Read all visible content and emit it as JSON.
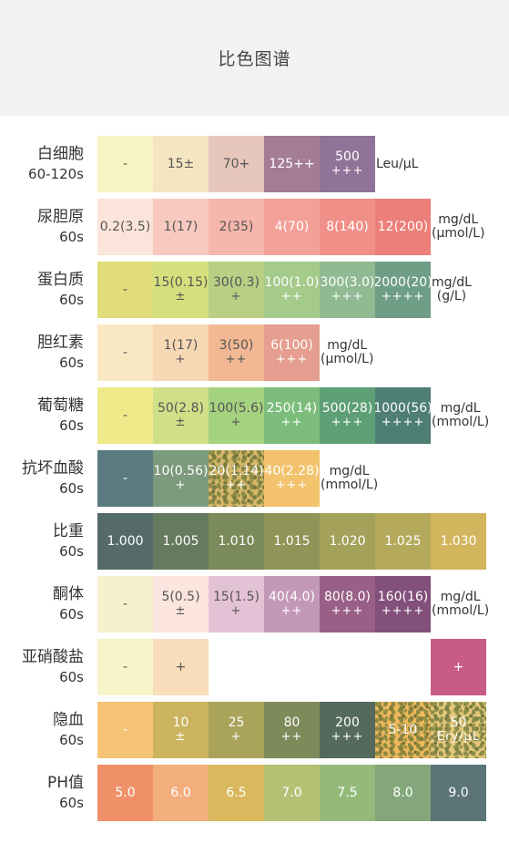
{
  "header": {
    "title": "比色图谱"
  },
  "rows": [
    {
      "name": "白细胞",
      "time": "60-120s",
      "cells": [
        {
          "t1": "-",
          "t2": "",
          "bg": "#f6f3c4",
          "dark": false
        },
        {
          "t1": "15±",
          "t2": "",
          "bg": "#f4e6c0",
          "dark": false
        },
        {
          "t1": "70+",
          "t2": "",
          "bg": "#e7c6bb",
          "dark": false
        },
        {
          "t1": "125++",
          "t2": "",
          "bg": "#a47c96",
          "dark": true
        },
        {
          "t1": "500",
          "t2": "+++",
          "bg": "#907398",
          "dark": true
        }
      ],
      "unit": [
        "Leu/μL"
      ]
    },
    {
      "name": "尿胆原",
      "time": "60s",
      "cells": [
        {
          "t1": "0.2(3.5)",
          "t2": "",
          "bg": "#fbe4da",
          "dark": false
        },
        {
          "t1": "1(17)",
          "t2": "",
          "bg": "#f8c9bf",
          "dark": false
        },
        {
          "t1": "2(35)",
          "t2": "",
          "bg": "#f5b6ab",
          "dark": false
        },
        {
          "t1": "4(70)",
          "t2": "",
          "bg": "#f3a198",
          "dark": true
        },
        {
          "t1": "8(140)",
          "t2": "",
          "bg": "#f08f88",
          "dark": true
        },
        {
          "t1": "12(200)",
          "t2": "",
          "bg": "#ed7f7a",
          "dark": true
        }
      ],
      "unit": [
        "mg/dL",
        "(μmol/L)"
      ]
    },
    {
      "name": "蛋白质",
      "time": "60s",
      "cells": [
        {
          "t1": "-",
          "t2": "",
          "bg": "#e0dc7a",
          "dark": false
        },
        {
          "t1": "15(0.15)",
          "t2": "±",
          "bg": "#d5e07c",
          "dark": false
        },
        {
          "t1": "30(0.3)",
          "t2": "+",
          "bg": "#b8cf84",
          "dark": false
        },
        {
          "t1": "100(1.0)",
          "t2": "++",
          "bg": "#a5cb8a",
          "dark": true
        },
        {
          "t1": "300(3.0)",
          "t2": "+++",
          "bg": "#8fba92",
          "dark": true
        },
        {
          "t1": "2000(20)",
          "t2": "++++",
          "bg": "#6f9e86",
          "dark": true
        }
      ],
      "unit": [
        "mg/dL",
        "(g/L)"
      ]
    },
    {
      "name": "胆红素",
      "time": "60s",
      "cells": [
        {
          "t1": "-",
          "t2": "",
          "bg": "#f9e8c4",
          "dark": false
        },
        {
          "t1": "1(17)",
          "t2": "+",
          "bg": "#f7d8b5",
          "dark": false
        },
        {
          "t1": "3(50)",
          "t2": "++",
          "bg": "#f2b894",
          "dark": false
        },
        {
          "t1": "6(100)",
          "t2": "+++",
          "bg": "#e59e8f",
          "dark": true
        }
      ],
      "unit": [
        "mg/dL",
        "(μmol/L)"
      ]
    },
    {
      "name": "葡萄糖",
      "time": "60s",
      "cells": [
        {
          "t1": "-",
          "t2": "",
          "bg": "#efe98a",
          "dark": false
        },
        {
          "t1": "50(2.8)",
          "t2": "±",
          "bg": "#cfe089",
          "dark": false
        },
        {
          "t1": "100(5.6)",
          "t2": "+",
          "bg": "#a5d27f",
          "dark": false
        },
        {
          "t1": "250(14)",
          "t2": "++",
          "bg": "#7cbd7c",
          "dark": true
        },
        {
          "t1": "500(28)",
          "t2": "+++",
          "bg": "#5e9f76",
          "dark": true
        },
        {
          "t1": "1000(56)",
          "t2": "++++",
          "bg": "#4e7e74",
          "dark": true
        }
      ],
      "unit": [
        "mg/dL",
        "(mmol/L)"
      ]
    },
    {
      "name": "抗坏血酸",
      "time": "60s",
      "cells": [
        {
          "t1": "-",
          "t2": "",
          "bg": "#587a80",
          "dark": true
        },
        {
          "t1": "10(0.56)",
          "t2": "+",
          "bg": "#7c9a7c",
          "dark": true
        },
        {
          "t1": "20(1.14)",
          "t2": "++",
          "bg": "#d9b86a",
          "dark": true,
          "speckle": true
        },
        {
          "t1": "40(2.28)",
          "t2": "+++",
          "bg": "#f2c36c",
          "dark": true
        }
      ],
      "unit": [
        "mg/dL",
        "(mmol/L)"
      ]
    },
    {
      "name": "比重",
      "time": "60s",
      "cells": [
        {
          "t1": "1.000",
          "t2": "",
          "bg": "#556b68",
          "dark": true
        },
        {
          "t1": "1.005",
          "t2": "",
          "bg": "#657a5f",
          "dark": true
        },
        {
          "t1": "1.010",
          "t2": "",
          "bg": "#7a8a5a",
          "dark": true
        },
        {
          "t1": "1.015",
          "t2": "",
          "bg": "#8f9558",
          "dark": true
        },
        {
          "t1": "1.020",
          "t2": "",
          "bg": "#a3a15a",
          "dark": true
        },
        {
          "t1": "1.025",
          "t2": "",
          "bg": "#b5a95c",
          "dark": true
        },
        {
          "t1": "1.030",
          "t2": "",
          "bg": "#d3b55e",
          "dark": true
        }
      ],
      "unit": []
    },
    {
      "name": "酮体",
      "time": "60s",
      "cells": [
        {
          "t1": "-",
          "t2": "",
          "bg": "#f7f0cc",
          "dark": false
        },
        {
          "t1": "5(0.5)",
          "t2": "±",
          "bg": "#fbe5de",
          "dark": false
        },
        {
          "t1": "15(1.5)",
          "t2": "+",
          "bg": "#e4c2d6",
          "dark": false
        },
        {
          "t1": "40(4.0)",
          "t2": "++",
          "bg": "#c499b8",
          "dark": true
        },
        {
          "t1": "80(8.0)",
          "t2": "+++",
          "bg": "#995f86",
          "dark": true
        },
        {
          "t1": "160(16)",
          "t2": "++++",
          "bg": "#82507a",
          "dark": true
        }
      ],
      "unit": [
        "mg/dL",
        "(mmol/L)"
      ]
    },
    {
      "name": "亚硝酸盐",
      "time": "60s",
      "cells": [
        {
          "t1": "-",
          "t2": "",
          "bg": "#f6f4c8",
          "dark": false
        },
        {
          "t1": "+",
          "t2": "",
          "bg": "#f7ddb9",
          "dark": false
        },
        null,
        null,
        null,
        null,
        {
          "t1": "+",
          "t2": "",
          "bg": "#c95c86",
          "dark": true
        }
      ],
      "unit": []
    },
    {
      "name": "隐血",
      "time": "60s",
      "cells": [
        {
          "t1": "-",
          "t2": "",
          "bg": "#f4c474",
          "dark": true
        },
        {
          "t1": "10",
          "t2": "±",
          "bg": "#cbb360",
          "dark": true
        },
        {
          "t1": "25",
          "t2": "+",
          "bg": "#a9a45a",
          "dark": true
        },
        {
          "t1": "80",
          "t2": "++",
          "bg": "#7f8a5a",
          "dark": true
        },
        {
          "t1": "200",
          "t2": "+++",
          "bg": "#546a5c",
          "dark": true
        },
        {
          "t1": "5-10",
          "t2": "",
          "bg": "#eeb85c",
          "dark": true,
          "speckle": true
        },
        {
          "t1": "50",
          "t2": "Ery/μL",
          "bg": "#e4c77a",
          "dark": true,
          "speckle": true
        }
      ],
      "unit": []
    },
    {
      "name": "PH值",
      "time": "60s",
      "cells": [
        {
          "t1": "5.0",
          "t2": "",
          "bg": "#f0916a",
          "dark": true
        },
        {
          "t1": "6.0",
          "t2": "",
          "bg": "#f2ae7c",
          "dark": true
        },
        {
          "t1": "6.5",
          "t2": "",
          "bg": "#d9b85e",
          "dark": true
        },
        {
          "t1": "7.0",
          "t2": "",
          "bg": "#b5c075",
          "dark": true
        },
        {
          "t1": "7.5",
          "t2": "",
          "bg": "#94ba7a",
          "dark": true
        },
        {
          "t1": "8.0",
          "t2": "",
          "bg": "#83a77a",
          "dark": true
        },
        {
          "t1": "9.0",
          "t2": "",
          "bg": "#5a7477",
          "dark": true
        }
      ],
      "unit": []
    }
  ]
}
